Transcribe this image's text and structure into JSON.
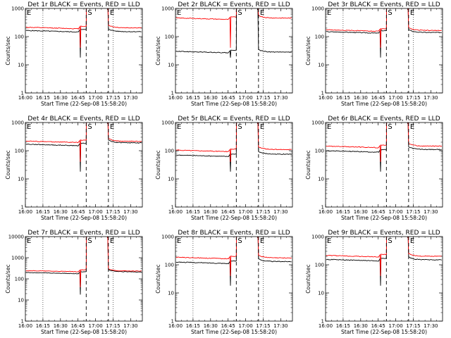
{
  "chart_data": [
    {
      "type": "line",
      "title": "Det 1r BLACK = Events, RED = LLD",
      "ylabel": "Counts/sec",
      "xlabel": "Start Time (22-Sep-08 15:58:20)",
      "x_ticks": [
        "16:00",
        "16:15",
        "16:30",
        "16:45",
        "17:00",
        "17:15",
        "17:30"
      ],
      "y_ticks": [
        "1",
        "10",
        "100",
        "1000"
      ],
      "yscale": "log",
      "ylim": [
        1,
        1000
      ],
      "markers": [
        {
          "label": "E",
          "time": "16:00"
        },
        {
          "label": "S",
          "time": "16:52"
        },
        {
          "label": "E",
          "time": "17:11"
        }
      ],
      "series": [
        {
          "name": "Events",
          "color": "#000000",
          "pre_level": 165,
          "post_level": 150
        },
        {
          "name": "LLD",
          "color": "#ff0000",
          "pre_level": 215,
          "post_level": 205
        }
      ]
    },
    {
      "type": "line",
      "title": "Det 2r BLACK = Events, RED = LLD",
      "ylabel": "Counts/sec",
      "xlabel": "Start Time (22-Sep-08 15:58:20)",
      "x_ticks": [
        "16:00",
        "16:15",
        "16:30",
        "16:45",
        "17:00",
        "17:15",
        "17:30"
      ],
      "y_ticks": [
        "1",
        "10",
        "100",
        "1000"
      ],
      "yscale": "log",
      "ylim": [
        1,
        1000
      ],
      "markers": [
        {
          "label": "E",
          "time": "16:00"
        },
        {
          "label": "S",
          "time": "16:52"
        },
        {
          "label": "E",
          "time": "17:11"
        }
      ],
      "series": [
        {
          "name": "Events",
          "color": "#000000",
          "pre_level": 30,
          "post_level": 28
        },
        {
          "name": "LLD",
          "color": "#ff0000",
          "pre_level": 460,
          "post_level": 455
        }
      ]
    },
    {
      "type": "line",
      "title": "Det 3r BLACK = Events, RED = LLD",
      "ylabel": "Counts/sec",
      "xlabel": "Start Time (22-Sep-08 15:58:20)",
      "x_ticks": [
        "16:00",
        "16:15",
        "16:30",
        "16:45",
        "17:00",
        "17:15",
        "17:30"
      ],
      "y_ticks": [
        "1",
        "10",
        "100",
        "1000"
      ],
      "yscale": "log",
      "ylim": [
        1,
        1000
      ],
      "markers": [
        {
          "label": "E",
          "time": "16:00"
        },
        {
          "label": "S",
          "time": "16:52"
        },
        {
          "label": "E",
          "time": "17:11"
        }
      ],
      "series": [
        {
          "name": "Events",
          "color": "#000000",
          "pre_level": 150,
          "post_level": 140
        },
        {
          "name": "LLD",
          "color": "#ff0000",
          "pre_level": 175,
          "post_level": 165
        }
      ]
    },
    {
      "type": "line",
      "title": "Det 4r BLACK = Events, RED = LLD",
      "ylabel": "Counts/sec",
      "xlabel": "Start Time (22-Sep-08 15:58:20)",
      "x_ticks": [
        "16:00",
        "16:15",
        "16:30",
        "16:45",
        "17:00",
        "17:15",
        "17:30"
      ],
      "y_ticks": [
        "1",
        "10",
        "100",
        "1000"
      ],
      "yscale": "log",
      "ylim": [
        1,
        1000
      ],
      "markers": [
        {
          "label": "E",
          "time": "16:00"
        },
        {
          "label": "S",
          "time": "16:52"
        },
        {
          "label": "E",
          "time": "17:11"
        }
      ],
      "series": [
        {
          "name": "Events",
          "color": "#000000",
          "pre_level": 170,
          "post_level": 190
        },
        {
          "name": "LLD",
          "color": "#ff0000",
          "pre_level": 220,
          "post_level": 215
        }
      ]
    },
    {
      "type": "line",
      "title": "Det 5r BLACK = Events, RED = LLD",
      "ylabel": "Counts/sec",
      "xlabel": "Start Time (22-Sep-08 15:58:20)",
      "x_ticks": [
        "16:00",
        "16:15",
        "16:30",
        "16:45",
        "17:00",
        "17:15",
        "17:30"
      ],
      "y_ticks": [
        "1",
        "10",
        "100",
        "1000"
      ],
      "yscale": "log",
      "ylim": [
        1,
        1000
      ],
      "markers": [
        {
          "label": "E",
          "time": "16:00"
        },
        {
          "label": "S",
          "time": "16:52"
        },
        {
          "label": "E",
          "time": "17:11"
        }
      ],
      "series": [
        {
          "name": "Events",
          "color": "#000000",
          "pre_level": 70,
          "post_level": 75
        },
        {
          "name": "LLD",
          "color": "#ff0000",
          "pre_level": 105,
          "post_level": 110
        }
      ]
    },
    {
      "type": "line",
      "title": "Det 6r BLACK = Events, RED = LLD",
      "ylabel": "Counts/sec",
      "xlabel": "Start Time (22-Sep-08 15:58:20)",
      "x_ticks": [
        "16:00",
        "16:15",
        "16:30",
        "16:45",
        "17:00",
        "17:15",
        "17:30"
      ],
      "y_ticks": [
        "1",
        "10",
        "100",
        "1000"
      ],
      "yscale": "log",
      "ylim": [
        1,
        1000
      ],
      "markers": [
        {
          "label": "E",
          "time": "16:00"
        },
        {
          "label": "S",
          "time": "16:52"
        },
        {
          "label": "E",
          "time": "17:11"
        }
      ],
      "series": [
        {
          "name": "Events",
          "color": "#000000",
          "pre_level": 100,
          "post_level": 110
        },
        {
          "name": "LLD",
          "color": "#ff0000",
          "pre_level": 145,
          "post_level": 145
        }
      ]
    },
    {
      "type": "line",
      "title": "Det 7r BLACK = Events, RED = LLD",
      "ylabel": "Counts/sec",
      "xlabel": "Start Time (22-Sep-08 15:58:20)",
      "x_ticks": [
        "16:00",
        "16:15",
        "16:30",
        "16:45",
        "17:00",
        "17:15",
        "17:30"
      ],
      "y_ticks": [
        "1",
        "10",
        "100",
        "1000",
        "10000"
      ],
      "yscale": "log",
      "ylim": [
        1,
        10000
      ],
      "markers": [
        {
          "label": "E",
          "time": "16:00"
        },
        {
          "label": "S",
          "time": "16:52"
        },
        {
          "label": "E",
          "time": "17:11"
        }
      ],
      "series": [
        {
          "name": "Events",
          "color": "#000000",
          "pre_level": 200,
          "post_level": 215
        },
        {
          "name": "LLD",
          "color": "#ff0000",
          "pre_level": 245,
          "post_level": 235
        }
      ]
    },
    {
      "type": "line",
      "title": "Det 8r BLACK = Events, RED = LLD",
      "ylabel": "Counts/sec",
      "xlabel": "Start Time (22-Sep-08 15:58:20)",
      "x_ticks": [
        "16:00",
        "16:15",
        "16:30",
        "16:45",
        "17:00",
        "17:15",
        "17:30"
      ],
      "y_ticks": [
        "1",
        "10",
        "100",
        "1000"
      ],
      "yscale": "log",
      "ylim": [
        1,
        1000
      ],
      "markers": [
        {
          "label": "E",
          "time": "16:00"
        },
        {
          "label": "S",
          "time": "16:52"
        },
        {
          "label": "E",
          "time": "17:11"
        }
      ],
      "series": [
        {
          "name": "Events",
          "color": "#000000",
          "pre_level": 125,
          "post_level": 130
        },
        {
          "name": "LLD",
          "color": "#ff0000",
          "pre_level": 185,
          "post_level": 175
        }
      ]
    },
    {
      "type": "line",
      "title": "Det 9r BLACK = Events, RED = LLD",
      "ylabel": "Counts/sec",
      "xlabel": "Start Time (22-Sep-08 15:58:20)",
      "x_ticks": [
        "16:00",
        "16:15",
        "16:30",
        "16:45",
        "17:00",
        "17:15",
        "17:30"
      ],
      "y_ticks": [
        "1",
        "10",
        "100",
        "1000"
      ],
      "yscale": "log",
      "ylim": [
        1,
        1000
      ],
      "markers": [
        {
          "label": "E",
          "time": "16:00"
        },
        {
          "label": "S",
          "time": "16:52"
        },
        {
          "label": "E",
          "time": "17:11"
        }
      ],
      "series": [
        {
          "name": "Events",
          "color": "#000000",
          "pre_level": 155,
          "post_level": 150
        },
        {
          "name": "LLD",
          "color": "#ff0000",
          "pre_level": 215,
          "post_level": 200
        }
      ]
    }
  ]
}
